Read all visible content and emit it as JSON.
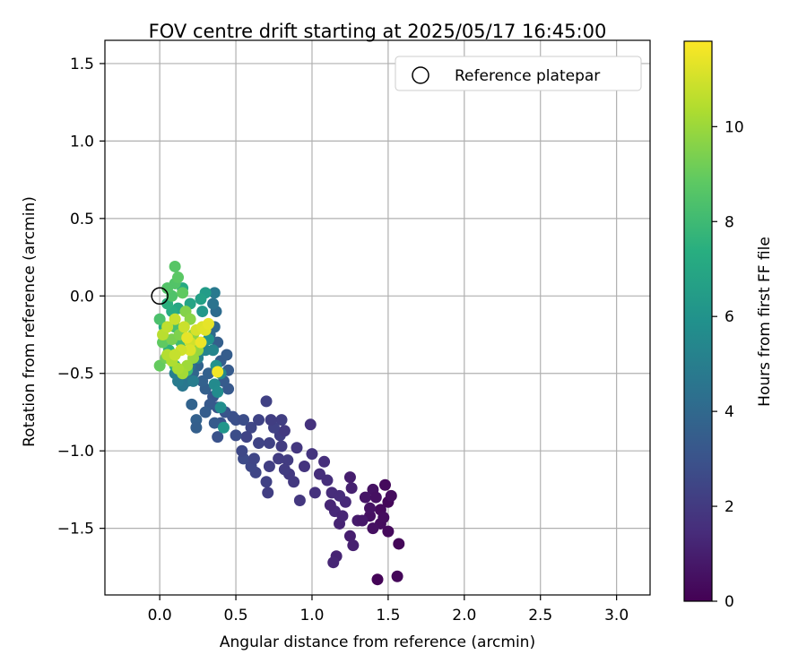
{
  "chart_data": {
    "type": "scatter",
    "title": "FOV centre drift starting at 2025/05/17 16:45:00",
    "xlabel": "Angular distance from reference (arcmin)",
    "ylabel": "Rotation from reference (arcmin)",
    "xlim": [
      -0.36,
      3.22
    ],
    "ylim": [
      -1.93,
      1.65
    ],
    "xticks": [
      0.0,
      0.5,
      1.0,
      1.5,
      2.0,
      2.5,
      3.0
    ],
    "xtick_labels": [
      "0.0",
      "0.5",
      "1.0",
      "1.5",
      "2.0",
      "2.5",
      "3.0"
    ],
    "yticks": [
      -1.5,
      -1.0,
      -0.5,
      0.0,
      0.5,
      1.0,
      1.5
    ],
    "ytick_labels": [
      "−1.5",
      "−1.0",
      "−0.5",
      "0.0",
      "0.5",
      "1.0",
      "1.5"
    ],
    "grid": true,
    "legend": {
      "position": "upper right",
      "entries": [
        "Reference platepar"
      ]
    },
    "reference_point": {
      "x": 0.0,
      "y": 0.0,
      "label": "Reference platepar"
    },
    "colorbar": {
      "label": "Hours from first FF file",
      "range": [
        0,
        11.8
      ],
      "ticks": [
        0,
        2,
        4,
        6,
        8,
        10
      ],
      "tick_labels": [
        "0",
        "2",
        "4",
        "6",
        "8",
        "10"
      ],
      "colormap": "viridis"
    },
    "points": [
      {
        "x": 1.43,
        "y": -1.83,
        "t": 0.1
      },
      {
        "x": 1.56,
        "y": -1.81,
        "t": 0.2
      },
      {
        "x": 1.57,
        "y": -1.6,
        "t": 0.2
      },
      {
        "x": 1.5,
        "y": -1.52,
        "t": 0.3
      },
      {
        "x": 1.45,
        "y": -1.47,
        "t": 0.4
      },
      {
        "x": 1.4,
        "y": -1.5,
        "t": 0.5
      },
      {
        "x": 1.38,
        "y": -1.42,
        "t": 0.5
      },
      {
        "x": 1.45,
        "y": -1.38,
        "t": 0.3
      },
      {
        "x": 1.5,
        "y": -1.33,
        "t": 0.2
      },
      {
        "x": 1.52,
        "y": -1.29,
        "t": 0.4
      },
      {
        "x": 1.48,
        "y": -1.22,
        "t": 0.3
      },
      {
        "x": 1.4,
        "y": -1.25,
        "t": 0.6
      },
      {
        "x": 1.35,
        "y": -1.3,
        "t": 0.7
      },
      {
        "x": 1.42,
        "y": -1.3,
        "t": 0.5
      },
      {
        "x": 1.38,
        "y": -1.37,
        "t": 0.6
      },
      {
        "x": 1.47,
        "y": -1.43,
        "t": 0.4
      },
      {
        "x": 1.3,
        "y": -1.45,
        "t": 0.9
      },
      {
        "x": 1.33,
        "y": -1.45,
        "t": 0.8
      },
      {
        "x": 1.25,
        "y": -1.17,
        "t": 1.0
      },
      {
        "x": 1.26,
        "y": -1.24,
        "t": 1.1
      },
      {
        "x": 1.25,
        "y": -1.55,
        "t": 1.0
      },
      {
        "x": 1.27,
        "y": -1.61,
        "t": 1.1
      },
      {
        "x": 1.16,
        "y": -1.68,
        "t": 1.2
      },
      {
        "x": 1.14,
        "y": -1.72,
        "t": 1.3
      },
      {
        "x": 1.18,
        "y": -1.47,
        "t": 1.2
      },
      {
        "x": 1.15,
        "y": -1.39,
        "t": 1.4
      },
      {
        "x": 1.12,
        "y": -1.35,
        "t": 1.3
      },
      {
        "x": 1.2,
        "y": -1.42,
        "t": 1.3
      },
      {
        "x": 1.22,
        "y": -1.33,
        "t": 1.4
      },
      {
        "x": 1.13,
        "y": -1.27,
        "t": 1.5
      },
      {
        "x": 1.18,
        "y": -1.29,
        "t": 1.5
      },
      {
        "x": 1.1,
        "y": -1.19,
        "t": 1.6
      },
      {
        "x": 1.05,
        "y": -1.15,
        "t": 1.6
      },
      {
        "x": 1.02,
        "y": -1.27,
        "t": 1.7
      },
      {
        "x": 1.08,
        "y": -1.07,
        "t": 1.6
      },
      {
        "x": 1.0,
        "y": -1.02,
        "t": 1.8
      },
      {
        "x": 0.99,
        "y": -0.83,
        "t": 1.7
      },
      {
        "x": 0.95,
        "y": -1.1,
        "t": 1.8
      },
      {
        "x": 0.92,
        "y": -1.32,
        "t": 1.9
      },
      {
        "x": 0.88,
        "y": -1.2,
        "t": 2.0
      },
      {
        "x": 0.85,
        "y": -1.15,
        "t": 2.0
      },
      {
        "x": 0.84,
        "y": -1.06,
        "t": 2.1
      },
      {
        "x": 0.9,
        "y": -0.98,
        "t": 1.9
      },
      {
        "x": 0.8,
        "y": -0.97,
        "t": 2.1
      },
      {
        "x": 0.79,
        "y": -0.9,
        "t": 2.2
      },
      {
        "x": 0.82,
        "y": -0.87,
        "t": 2.0
      },
      {
        "x": 0.8,
        "y": -0.8,
        "t": 2.2
      },
      {
        "x": 0.75,
        "y": -0.85,
        "t": 2.3
      },
      {
        "x": 0.7,
        "y": -0.68,
        "t": 2.3
      },
      {
        "x": 0.73,
        "y": -0.8,
        "t": 2.2
      },
      {
        "x": 0.65,
        "y": -0.8,
        "t": 2.4
      },
      {
        "x": 0.6,
        "y": -0.85,
        "t": 2.5
      },
      {
        "x": 0.57,
        "y": -0.91,
        "t": 2.4
      },
      {
        "x": 0.72,
        "y": -0.95,
        "t": 2.3
      },
      {
        "x": 0.78,
        "y": -1.05,
        "t": 2.1
      },
      {
        "x": 0.82,
        "y": -1.12,
        "t": 2.1
      },
      {
        "x": 0.72,
        "y": -1.1,
        "t": 2.2
      },
      {
        "x": 0.7,
        "y": -1.2,
        "t": 2.3
      },
      {
        "x": 0.71,
        "y": -1.27,
        "t": 2.2
      },
      {
        "x": 0.63,
        "y": -1.14,
        "t": 2.5
      },
      {
        "x": 0.6,
        "y": -1.1,
        "t": 2.6
      },
      {
        "x": 0.55,
        "y": -1.05,
        "t": 2.7
      },
      {
        "x": 0.54,
        "y": -1.0,
        "t": 2.6
      },
      {
        "x": 0.62,
        "y": -1.05,
        "t": 2.5
      },
      {
        "x": 0.65,
        "y": -0.95,
        "t": 2.4
      },
      {
        "x": 0.5,
        "y": -0.9,
        "t": 2.8
      },
      {
        "x": 0.5,
        "y": -0.8,
        "t": 2.9
      },
      {
        "x": 0.55,
        "y": -0.8,
        "t": 2.8
      },
      {
        "x": 0.48,
        "y": -0.78,
        "t": 2.9
      },
      {
        "x": 0.38,
        "y": -0.91,
        "t": 3.0
      },
      {
        "x": 0.4,
        "y": -0.82,
        "t": 3.1
      },
      {
        "x": 0.43,
        "y": -0.75,
        "t": 3.1
      },
      {
        "x": 0.38,
        "y": -0.72,
        "t": 3.2
      },
      {
        "x": 0.35,
        "y": -0.65,
        "t": 3.2
      },
      {
        "x": 0.33,
        "y": -0.7,
        "t": 3.3
      },
      {
        "x": 0.45,
        "y": -0.6,
        "t": 3.3
      },
      {
        "x": 0.42,
        "y": -0.55,
        "t": 3.4
      },
      {
        "x": 0.45,
        "y": -0.48,
        "t": 3.4
      },
      {
        "x": 0.4,
        "y": -0.42,
        "t": 3.5
      },
      {
        "x": 0.44,
        "y": -0.38,
        "t": 3.5
      },
      {
        "x": 0.38,
        "y": -0.3,
        "t": 3.6
      },
      {
        "x": 0.3,
        "y": -0.6,
        "t": 3.6
      },
      {
        "x": 0.28,
        "y": -0.55,
        "t": 3.7
      },
      {
        "x": 0.32,
        "y": -0.5,
        "t": 3.7
      },
      {
        "x": 0.25,
        "y": -0.45,
        "t": 3.8
      },
      {
        "x": 0.22,
        "y": -0.5,
        "t": 3.9
      },
      {
        "x": 0.24,
        "y": -0.8,
        "t": 3.7
      },
      {
        "x": 0.24,
        "y": -0.85,
        "t": 3.6
      },
      {
        "x": 0.21,
        "y": -0.7,
        "t": 3.8
      },
      {
        "x": 0.3,
        "y": -0.75,
        "t": 3.5
      },
      {
        "x": 0.36,
        "y": -0.82,
        "t": 3.4
      },
      {
        "x": 0.36,
        "y": -0.2,
        "t": 4.0
      },
      {
        "x": 0.37,
        "y": -0.1,
        "t": 4.2
      },
      {
        "x": 0.35,
        "y": -0.05,
        "t": 4.5
      },
      {
        "x": 0.36,
        "y": 0.02,
        "t": 4.8
      },
      {
        "x": 0.33,
        "y": -0.25,
        "t": 4.1
      },
      {
        "x": 0.28,
        "y": -0.35,
        "t": 4.3
      },
      {
        "x": 0.2,
        "y": -0.45,
        "t": 4.4
      },
      {
        "x": 0.18,
        "y": -0.55,
        "t": 4.6
      },
      {
        "x": 0.15,
        "y": -0.58,
        "t": 4.7
      },
      {
        "x": 0.12,
        "y": -0.55,
        "t": 4.9
      },
      {
        "x": 0.1,
        "y": -0.5,
        "t": 5.1
      },
      {
        "x": 0.22,
        "y": -0.55,
        "t": 5.0
      },
      {
        "x": 0.25,
        "y": -0.4,
        "t": 5.2
      },
      {
        "x": 0.3,
        "y": -0.35,
        "t": 5.3
      },
      {
        "x": 0.35,
        "y": -0.35,
        "t": 5.4
      },
      {
        "x": 0.4,
        "y": -0.5,
        "t": 5.5
      },
      {
        "x": 0.36,
        "y": -0.57,
        "t": 5.6
      },
      {
        "x": 0.38,
        "y": -0.62,
        "t": 5.7
      },
      {
        "x": 0.4,
        "y": -0.72,
        "t": 5.8
      },
      {
        "x": 0.42,
        "y": -0.85,
        "t": 6.2
      },
      {
        "x": 0.37,
        "y": -0.45,
        "t": 6.0
      },
      {
        "x": 0.32,
        "y": -0.28,
        "t": 6.1
      },
      {
        "x": 0.28,
        "y": -0.1,
        "t": 6.3
      },
      {
        "x": 0.3,
        "y": 0.02,
        "t": 6.5
      },
      {
        "x": 0.27,
        "y": -0.02,
        "t": 6.7
      },
      {
        "x": 0.2,
        "y": -0.05,
        "t": 6.9
      },
      {
        "x": 0.15,
        "y": 0.05,
        "t": 7.2
      },
      {
        "x": 0.12,
        "y": -0.08,
        "t": 7.0
      },
      {
        "x": 0.08,
        "y": -0.1,
        "t": 7.3
      },
      {
        "x": 0.05,
        "y": -0.05,
        "t": 7.5
      },
      {
        "x": 0.03,
        "y": -0.2,
        "t": 7.4
      },
      {
        "x": 0.06,
        "y": -0.35,
        "t": 7.6
      },
      {
        "x": 0.1,
        "y": -0.45,
        "t": 7.8
      },
      {
        "x": 0.18,
        "y": -0.48,
        "t": 7.9
      },
      {
        "x": 0.14,
        "y": -0.3,
        "t": 8.1
      },
      {
        "x": 0.1,
        "y": -0.2,
        "t": 8.3
      },
      {
        "x": 0.08,
        "y": 0.0,
        "t": 8.5
      },
      {
        "x": 0.1,
        "y": 0.08,
        "t": 8.6
      },
      {
        "x": 0.12,
        "y": 0.12,
        "t": 8.8
      },
      {
        "x": 0.1,
        "y": 0.19,
        "t": 8.7
      },
      {
        "x": 0.15,
        "y": 0.02,
        "t": 8.9
      },
      {
        "x": 0.05,
        "y": 0.05,
        "t": 8.6
      },
      {
        "x": 0.0,
        "y": -0.15,
        "t": 8.4
      },
      {
        "x": 0.02,
        "y": -0.3,
        "t": 8.9
      },
      {
        "x": 0.0,
        "y": -0.45,
        "t": 9.0
      },
      {
        "x": 0.04,
        "y": -0.4,
        "t": 9.2
      },
      {
        "x": 0.08,
        "y": -0.28,
        "t": 9.4
      },
      {
        "x": 0.13,
        "y": -0.25,
        "t": 9.5
      },
      {
        "x": 0.17,
        "y": -0.1,
        "t": 9.6
      },
      {
        "x": 0.2,
        "y": -0.15,
        "t": 9.7
      },
      {
        "x": 0.22,
        "y": -0.25,
        "t": 9.8
      },
      {
        "x": 0.25,
        "y": -0.35,
        "t": 9.9
      },
      {
        "x": 0.22,
        "y": -0.4,
        "t": 10.0
      },
      {
        "x": 0.18,
        "y": -0.45,
        "t": 10.1
      },
      {
        "x": 0.15,
        "y": -0.5,
        "t": 10.2
      },
      {
        "x": 0.12,
        "y": -0.47,
        "t": 10.3
      },
      {
        "x": 0.08,
        "y": -0.42,
        "t": 10.4
      },
      {
        "x": 0.05,
        "y": -0.38,
        "t": 10.5
      },
      {
        "x": 0.02,
        "y": -0.25,
        "t": 10.6
      },
      {
        "x": 0.05,
        "y": -0.2,
        "t": 10.7
      },
      {
        "x": 0.1,
        "y": -0.15,
        "t": 10.8
      },
      {
        "x": 0.16,
        "y": -0.2,
        "t": 10.9
      },
      {
        "x": 0.2,
        "y": -0.3,
        "t": 11.0
      },
      {
        "x": 0.24,
        "y": -0.22,
        "t": 11.1
      },
      {
        "x": 0.28,
        "y": -0.2,
        "t": 11.2
      },
      {
        "x": 0.3,
        "y": -0.22,
        "t": 11.3
      },
      {
        "x": 0.32,
        "y": -0.18,
        "t": 11.4
      },
      {
        "x": 0.27,
        "y": -0.3,
        "t": 11.5
      },
      {
        "x": 0.38,
        "y": -0.49,
        "t": 11.6
      },
      {
        "x": 0.2,
        "y": -0.35,
        "t": 11.2
      },
      {
        "x": 0.14,
        "y": -0.35,
        "t": 11.0
      },
      {
        "x": 0.1,
        "y": -0.38,
        "t": 10.8
      },
      {
        "x": 0.18,
        "y": -0.27,
        "t": 11.4
      }
    ]
  }
}
